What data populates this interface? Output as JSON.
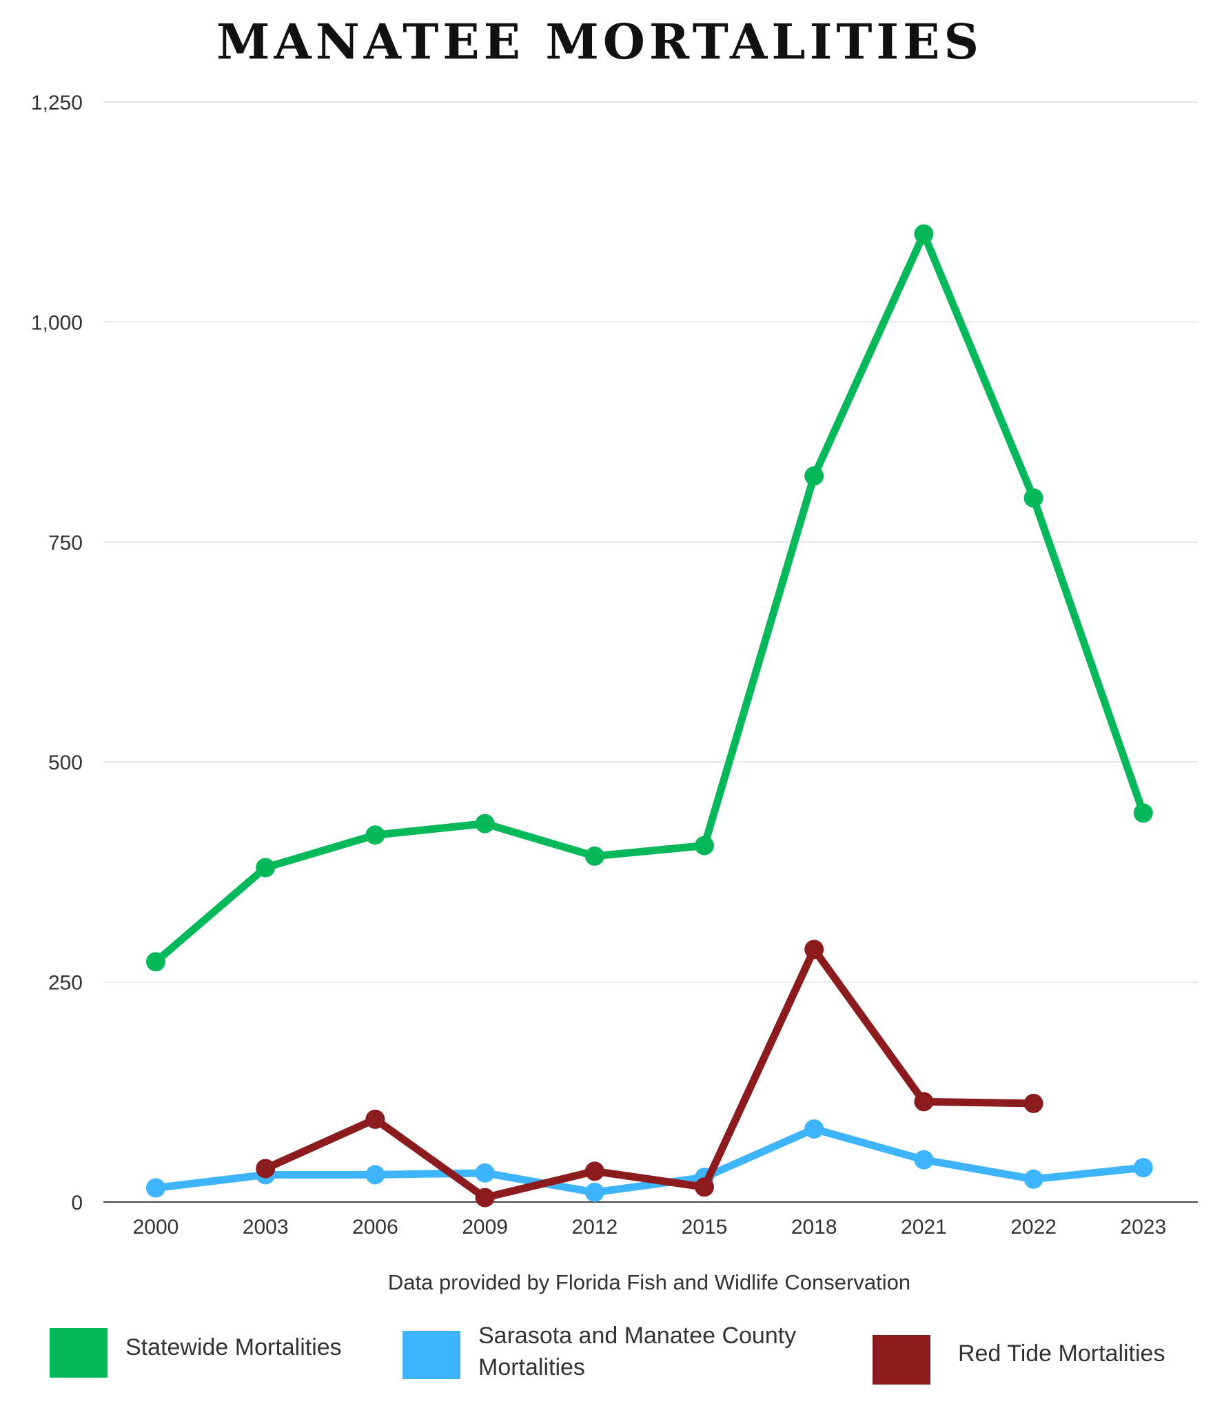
{
  "chart_data": {
    "type": "line",
    "title": "MANATEE MORTALITIES",
    "source_note": "Data provided by Florida Fish and Widlife Conservation",
    "categories": [
      "2000",
      "2003",
      "2006",
      "2009",
      "2012",
      "2015",
      "2018",
      "2021",
      "2022",
      "2023"
    ],
    "ylim": [
      0,
      1250
    ],
    "yticks": [
      0,
      250,
      500,
      750,
      1000,
      1250
    ],
    "ytick_labels": [
      "0",
      "250",
      "500",
      "750",
      "1,000",
      "1,250"
    ],
    "grid": true,
    "legend_position": "bottom",
    "series": [
      {
        "name": "Statewide Mortalities",
        "color": "#05b95a",
        "values": [
          273,
          380,
          417,
          430,
          393,
          405,
          825,
          1100,
          800,
          442
        ]
      },
      {
        "name": "Sarasota and Manatee County Mortalities",
        "color": "#3db4fb",
        "values": [
          16,
          31,
          31,
          33,
          11,
          28,
          83,
          48,
          26,
          39
        ]
      },
      {
        "name": "Red Tide Mortalities",
        "color": "#8c1b1e",
        "values": [
          null,
          38,
          94,
          5,
          35,
          17,
          287,
          114,
          112,
          null
        ]
      }
    ]
  }
}
